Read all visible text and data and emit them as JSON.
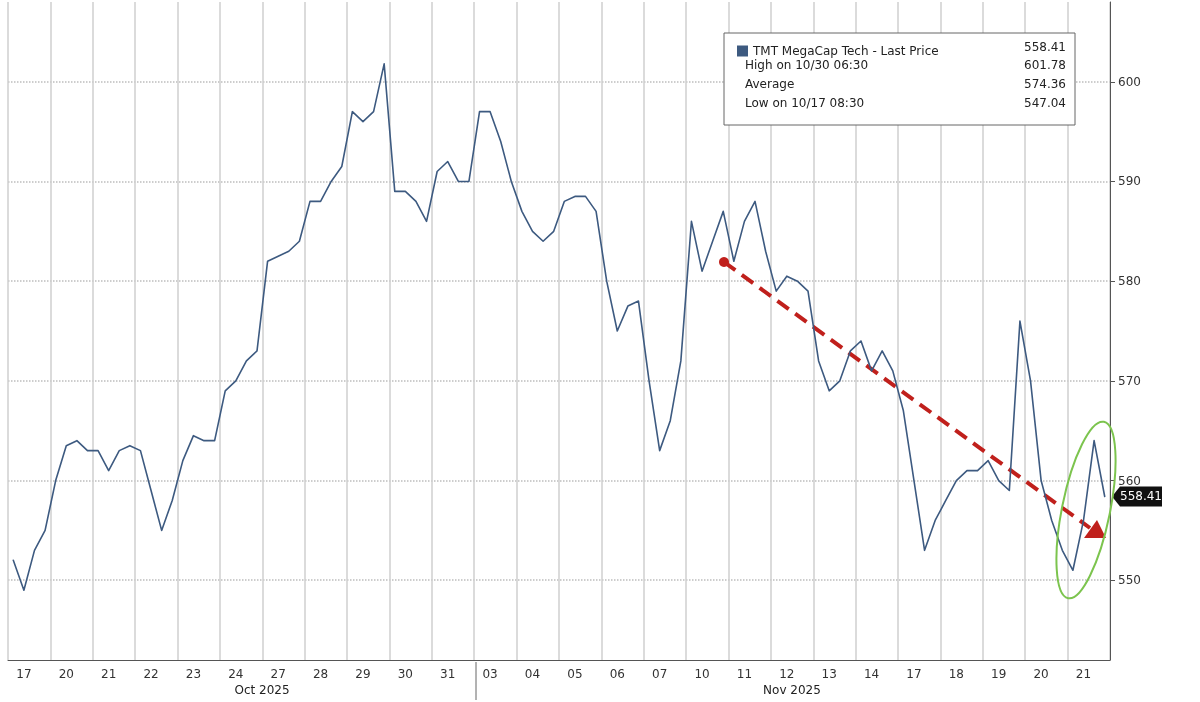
{
  "chart_data": {
    "type": "line",
    "categories": [
      null,
      "17",
      null,
      null,
      null,
      "20",
      null,
      null,
      null,
      "21",
      null,
      null,
      null,
      "22",
      null,
      null,
      null,
      "23",
      null,
      null,
      null,
      "24",
      null,
      null,
      null,
      "27",
      null,
      null,
      null,
      "28",
      null,
      null,
      null,
      "29",
      null,
      null,
      null,
      "30",
      null,
      null,
      null,
      "31",
      null,
      null,
      null,
      "03",
      null,
      null,
      null,
      "04",
      null,
      null,
      null,
      "05",
      null,
      null,
      null,
      "06",
      null,
      null,
      null,
      "07",
      null,
      null,
      null,
      "10",
      null,
      null,
      null,
      "11",
      null,
      null,
      null,
      "12",
      null,
      null,
      null,
      "13",
      null,
      null,
      null,
      "14",
      null,
      null,
      null,
      "17",
      null,
      null,
      null,
      "18",
      null,
      null,
      null,
      "19",
      null,
      null,
      null,
      "20",
      null,
      null,
      null,
      "21",
      null,
      null
    ],
    "series": [
      {
        "name": "TMT MegaCap Tech - Last Price",
        "color": "#3d5a80",
        "values": [
          552,
          549,
          553,
          555,
          560,
          563.5,
          564,
          563,
          563,
          561,
          563,
          563.5,
          563,
          559,
          555,
          558,
          562,
          564.5,
          564,
          564,
          569,
          570,
          572,
          573,
          582,
          582.5,
          583,
          584,
          588,
          588,
          590,
          591.5,
          597,
          596,
          597,
          601.8,
          589,
          589,
          588,
          586,
          591,
          592,
          590,
          590,
          597,
          597,
          594,
          590,
          587,
          585,
          584,
          585,
          588,
          588.5,
          588.5,
          587,
          580,
          575,
          577.5,
          578,
          570,
          563,
          566,
          572,
          586,
          581,
          584,
          587,
          582,
          586,
          588,
          583,
          579,
          580.5,
          580,
          579,
          572,
          569,
          570,
          573,
          574,
          571,
          573,
          571,
          567,
          560,
          553,
          556,
          558,
          560,
          561,
          561,
          562,
          560,
          559,
          576,
          570,
          560,
          556,
          553,
          551,
          556,
          564,
          558.4
        ]
      }
    ],
    "ylim": [
      542,
      608
    ],
    "yticks": [
      550,
      560,
      570,
      580,
      590,
      600
    ],
    "grid": true,
    "legend": "top right",
    "marker": "none",
    "line_style": "solid",
    "annotations": [
      "558.41",
      "High on 10/30 06:30",
      "601.78",
      "Average",
      "574.36",
      "Low on 10/17 08:30",
      "547.04",
      "Oct 2025",
      "Nov 2025",
      "558.41"
    ]
  }
}
